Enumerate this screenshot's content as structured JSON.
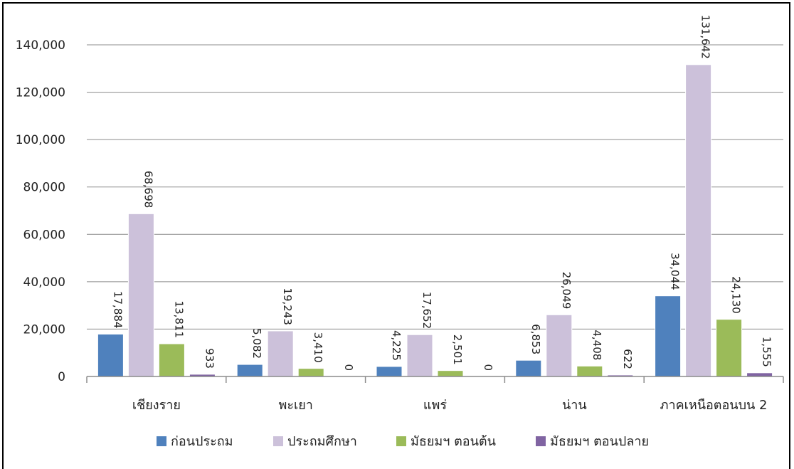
{
  "chart_data": {
    "type": "bar",
    "title": "",
    "xlabel": "",
    "ylabel": "",
    "ylim": [
      0,
      140000
    ],
    "yticks": [
      0,
      20000,
      40000,
      60000,
      80000,
      100000,
      120000,
      140000
    ],
    "ytick_labels": [
      "0",
      "20,000",
      "40,000",
      "60,000",
      "80,000",
      "100,000",
      "120,000",
      "140,000"
    ],
    "grid": true,
    "legend_position": "bottom",
    "categories": [
      "เชียงราย",
      "พะเยา",
      "แพร่",
      "น่าน",
      "ภาคเหนือตอนบน 2"
    ],
    "series": [
      {
        "name": "ก่อนประถม",
        "color": "#4f81bd",
        "values": [
          17884,
          5082,
          4225,
          6853,
          34044
        ],
        "labels": [
          "17,884",
          "5,082",
          "4,225",
          "6,853",
          "34,044"
        ]
      },
      {
        "name": "ประถมศึกษา",
        "color": "#ccc1da",
        "values": [
          68698,
          19243,
          17652,
          26049,
          131642
        ],
        "labels": [
          "68,698",
          "19,243",
          "17,652",
          "26,049",
          "131,642"
        ]
      },
      {
        "name": "มัธยมฯ ตอนต้น",
        "color": "#9bbb59",
        "values": [
          13811,
          3410,
          2501,
          4408,
          24130
        ],
        "labels": [
          "13,811",
          "3,410",
          "2,501",
          "4,408",
          "24,130"
        ]
      },
      {
        "name": "มัธยมฯ ตอนปลาย",
        "color": "#8064a2",
        "values": [
          933,
          0,
          0,
          622,
          1555
        ],
        "labels": [
          "933",
          "0",
          "0",
          "622",
          "1,555"
        ]
      }
    ]
  }
}
